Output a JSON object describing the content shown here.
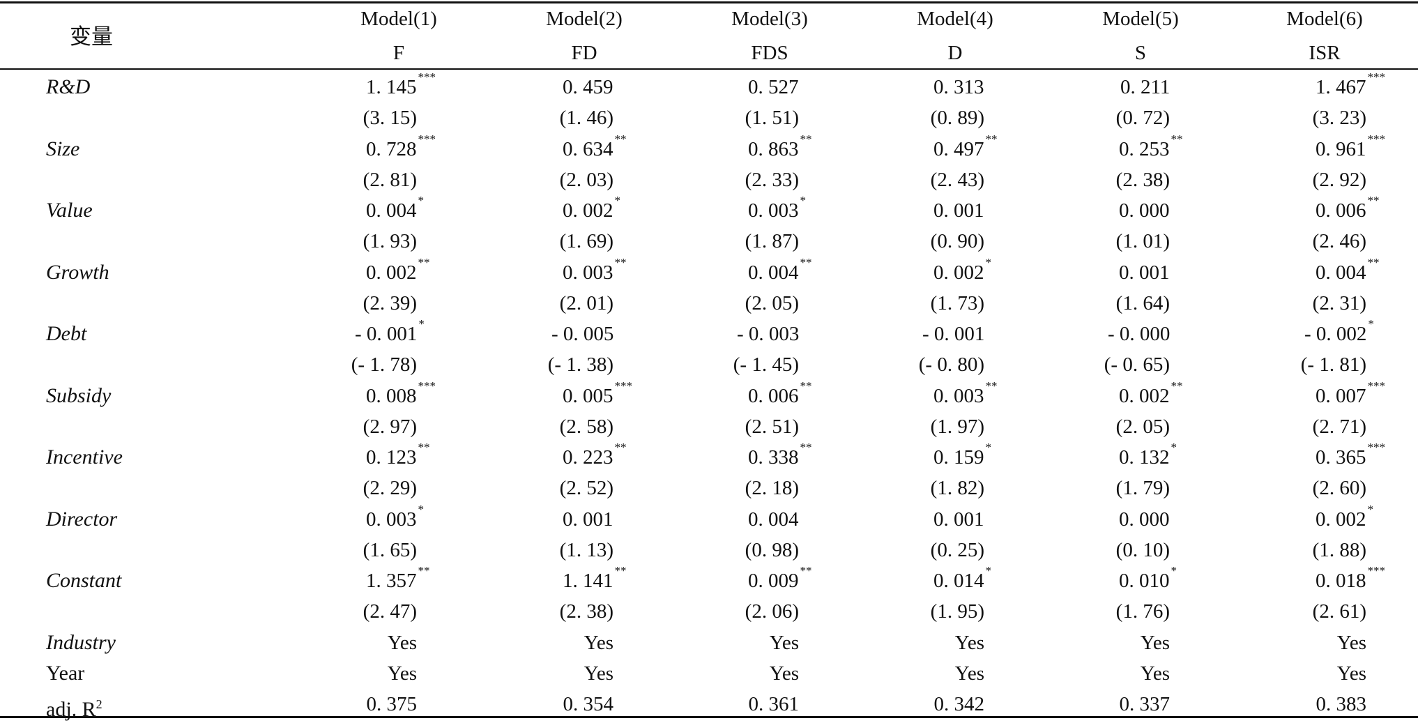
{
  "table": {
    "corner_label": "变量",
    "models": [
      {
        "name": "Model(1)",
        "dep": "F"
      },
      {
        "name": "Model(2)",
        "dep": "FD"
      },
      {
        "name": "Model(3)",
        "dep": "FDS"
      },
      {
        "name": "Model(4)",
        "dep": "D"
      },
      {
        "name": "Model(5)",
        "dep": "S"
      },
      {
        "name": "Model(6)",
        "dep": "ISR"
      }
    ],
    "rows": [
      {
        "label": "R&D",
        "italic": true,
        "coef": [
          "1. 145",
          "0. 459",
          "0. 527",
          "0. 313",
          "0. 211",
          "1. 467"
        ],
        "sig": [
          "***",
          "",
          "",
          "",
          "",
          "***"
        ],
        "t": [
          "(3. 15)",
          "(1. 46)",
          "(1. 51)",
          "(0. 89)",
          "(0. 72)",
          "(3. 23)"
        ]
      },
      {
        "label": "Size",
        "italic": true,
        "coef": [
          "0. 728",
          "0. 634",
          "0. 863",
          "0. 497",
          "0. 253",
          "0. 961"
        ],
        "sig": [
          "***",
          "**",
          "**",
          "**",
          "**",
          "***"
        ],
        "t": [
          "(2. 81)",
          "(2. 03)",
          "(2. 33)",
          "(2. 43)",
          "(2. 38)",
          "(2. 92)"
        ]
      },
      {
        "label": "Value",
        "italic": true,
        "coef": [
          "0. 004",
          "0. 002",
          "0. 003",
          "0. 001",
          "0. 000",
          "0. 006"
        ],
        "sig": [
          "*",
          "*",
          "*",
          "",
          "",
          "**"
        ],
        "t": [
          "(1. 93)",
          "(1. 69)",
          "(1. 87)",
          "(0. 90)",
          "(1. 01)",
          "(2. 46)"
        ]
      },
      {
        "label": "Growth",
        "italic": true,
        "coef": [
          "0. 002",
          "0. 003",
          "0. 004",
          "0. 002",
          "0. 001",
          "0. 004"
        ],
        "sig": [
          "**",
          "**",
          "**",
          "*",
          "",
          "**"
        ],
        "t": [
          "(2. 39)",
          "(2. 01)",
          "(2. 05)",
          "(1. 73)",
          "(1. 64)",
          "(2. 31)"
        ]
      },
      {
        "label": "Debt",
        "italic": true,
        "coef": [
          "- 0. 001",
          "- 0. 005",
          "- 0. 003",
          "- 0. 001",
          "- 0. 000",
          "- 0. 002"
        ],
        "sig": [
          "*",
          "",
          "",
          "",
          "",
          "*"
        ],
        "t": [
          "(- 1. 78)",
          "(- 1. 38)",
          "(- 1. 45)",
          "(- 0. 80)",
          "(- 0. 65)",
          "(- 1. 81)"
        ]
      },
      {
        "label": "Subsidy",
        "italic": true,
        "coef": [
          "0. 008",
          "0. 005",
          "0. 006",
          "0. 003",
          "0. 002",
          "0. 007"
        ],
        "sig": [
          "***",
          "***",
          "**",
          "**",
          "**",
          "***"
        ],
        "t": [
          "(2. 97)",
          "(2. 58)",
          "(2. 51)",
          "(1. 97)",
          "(2. 05)",
          "(2. 71)"
        ]
      },
      {
        "label": "Incentive",
        "italic": true,
        "coef": [
          "0. 123",
          "0. 223",
          "0. 338",
          "0. 159",
          "0. 132",
          "0. 365"
        ],
        "sig": [
          "**",
          "**",
          "**",
          "*",
          "*",
          "***"
        ],
        "t": [
          "(2. 29)",
          "(2. 52)",
          "(2. 18)",
          "(1. 82)",
          "(1. 79)",
          "(2. 60)"
        ]
      },
      {
        "label": "Director",
        "italic": true,
        "coef": [
          "0. 003",
          "0. 001",
          "0. 004",
          "0. 001",
          "0. 000",
          "0. 002"
        ],
        "sig": [
          "*",
          "",
          "",
          "",
          "",
          "*"
        ],
        "t": [
          "(1. 65)",
          "(1. 13)",
          "(0. 98)",
          "(0. 25)",
          "(0. 10)",
          "(1. 88)"
        ]
      },
      {
        "label": "Constant",
        "italic": true,
        "coef": [
          "1. 357",
          "1. 141",
          "0. 009",
          "0. 014",
          "0. 010",
          "0. 018"
        ],
        "sig": [
          "**",
          "**",
          "**",
          "*",
          "*",
          "***"
        ],
        "t": [
          "(2. 47)",
          "(2. 38)",
          "(2. 06)",
          "(1. 95)",
          "(1. 76)",
          "(2. 61)"
        ]
      }
    ],
    "footer_rows": [
      {
        "label": "Industry",
        "italic": true,
        "values": [
          "Yes",
          "Yes",
          "Yes",
          "Yes",
          "Yes",
          "Yes"
        ]
      },
      {
        "label": "Year",
        "italic": false,
        "values": [
          "Yes",
          "Yes",
          "Yes",
          "Yes",
          "Yes",
          "Yes"
        ]
      },
      {
        "label": "adj. R",
        "label_sup": "2",
        "italic": false,
        "values": [
          "0. 375",
          "0. 354",
          "0. 361",
          "0. 342",
          "0. 337",
          "0. 383"
        ]
      }
    ]
  }
}
